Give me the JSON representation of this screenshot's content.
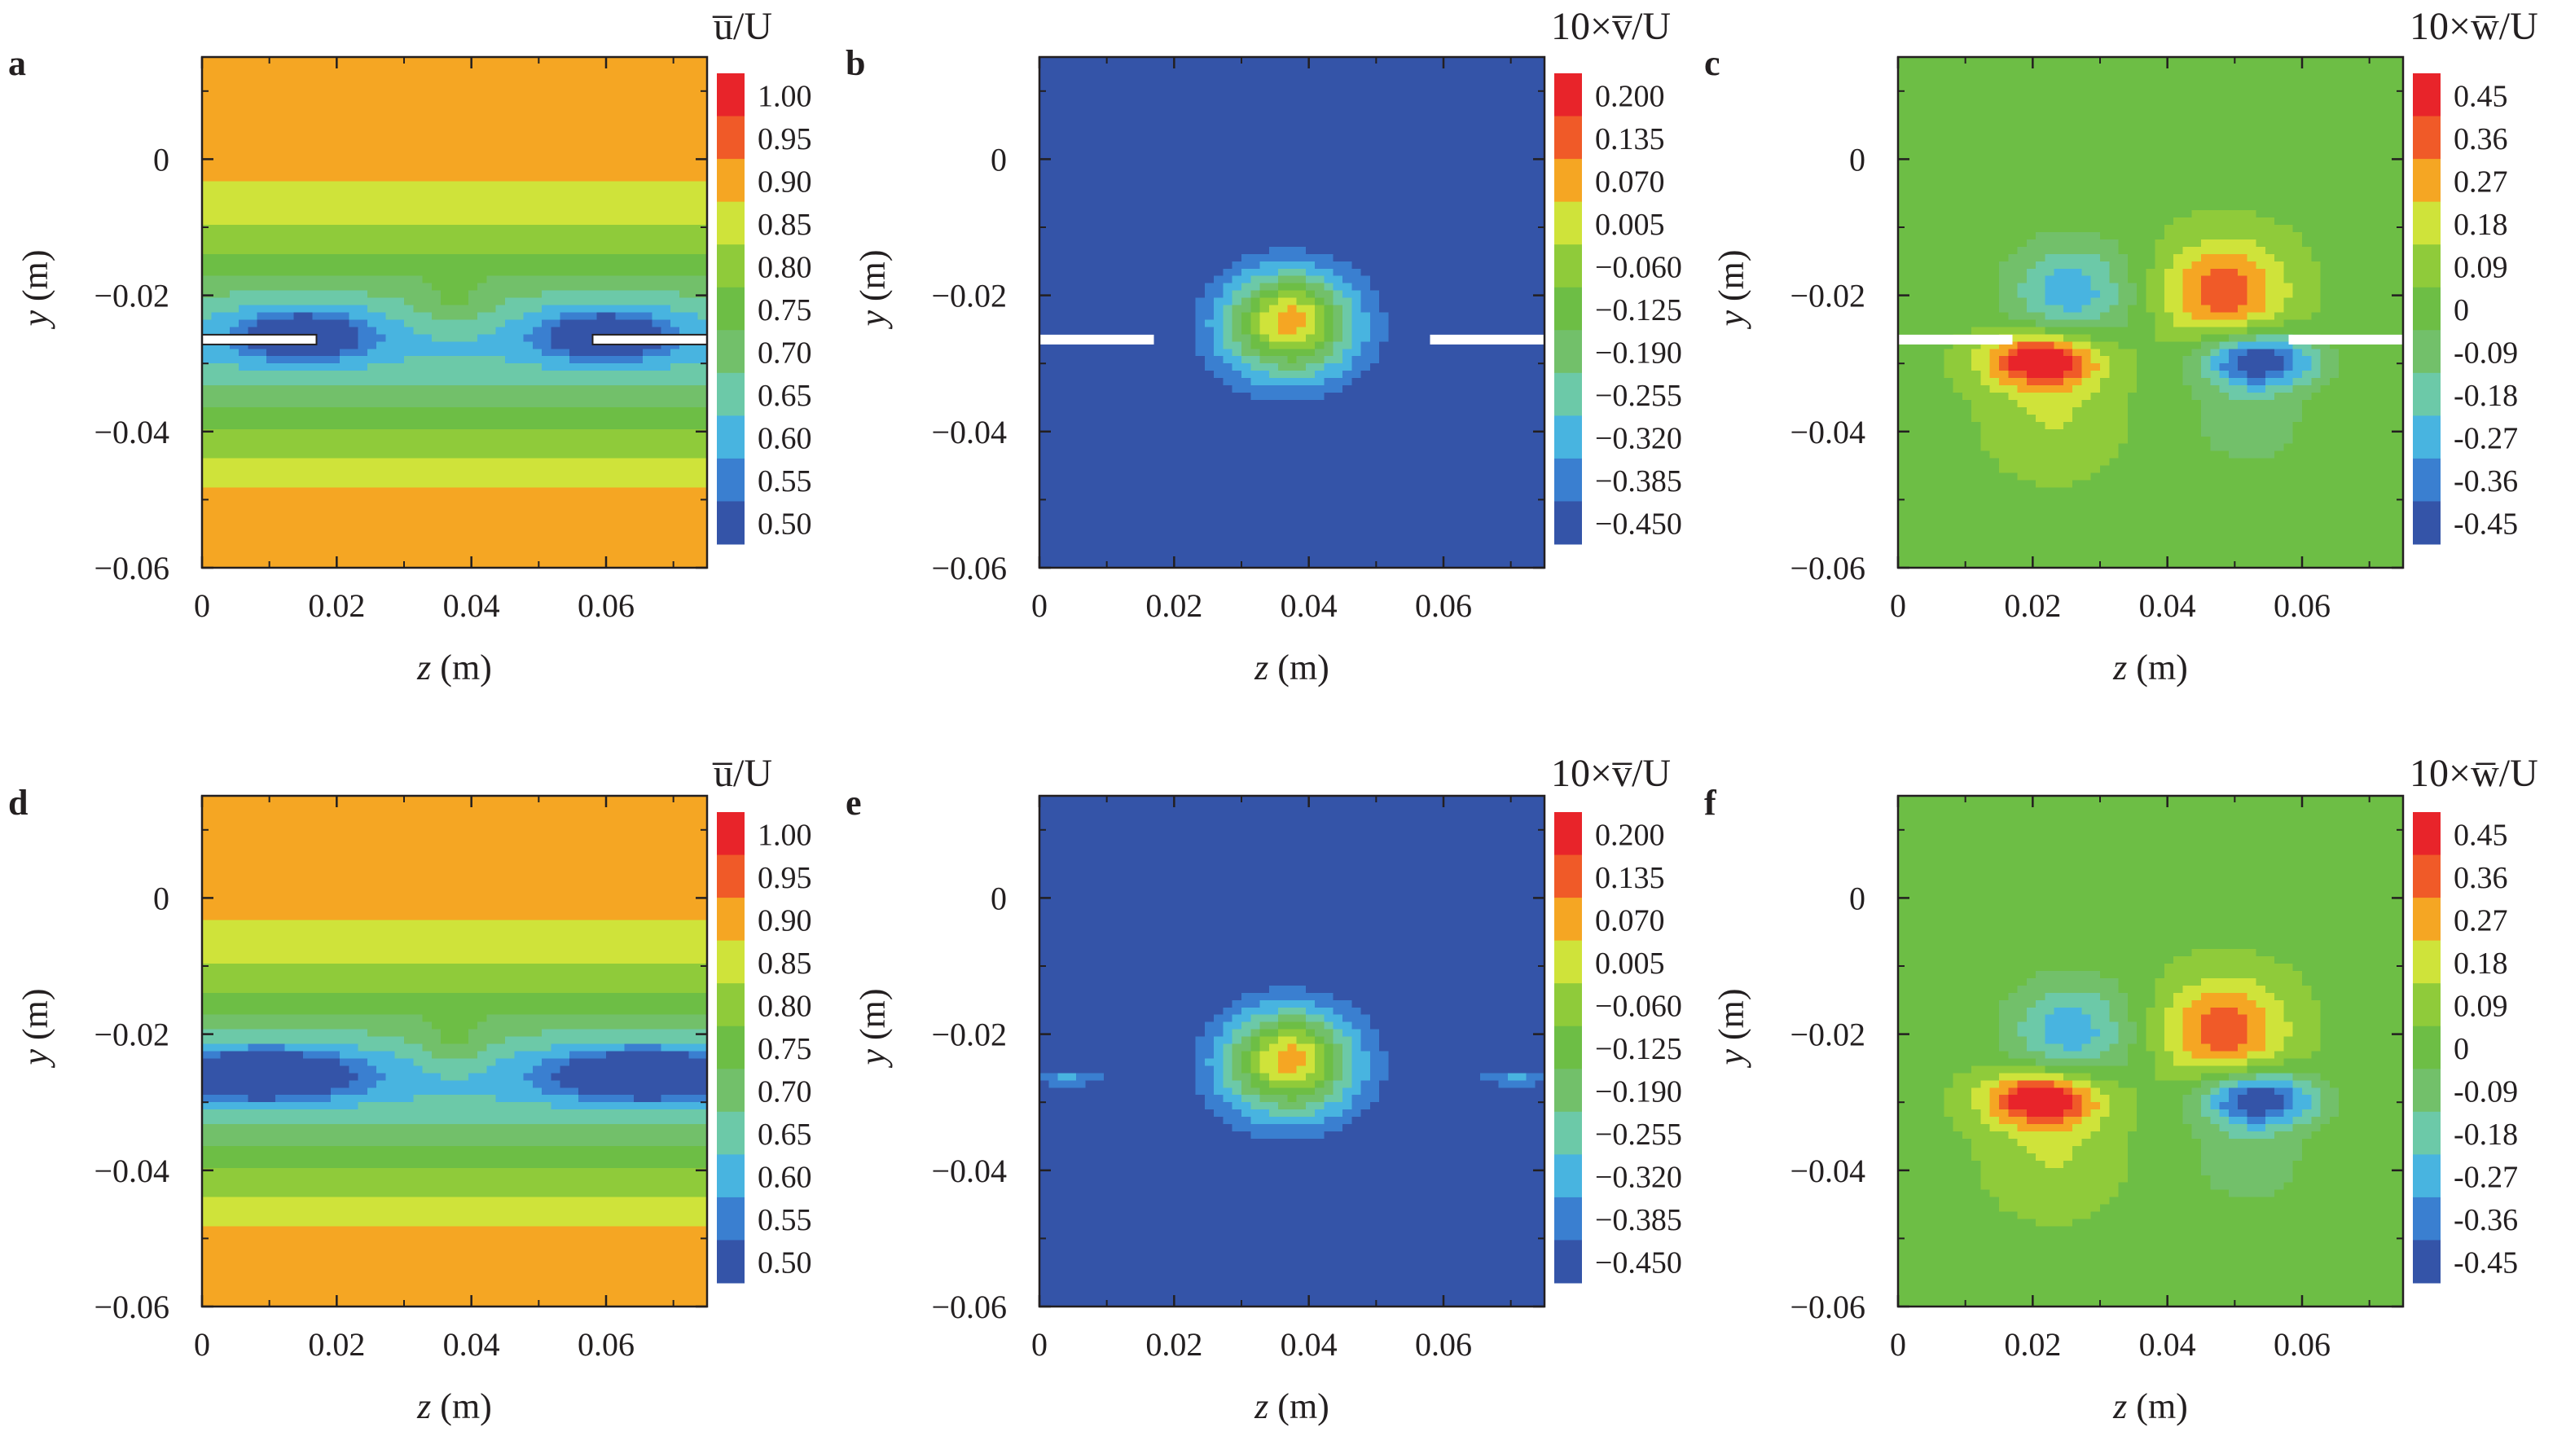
{
  "figure": {
    "panels": [
      {
        "letter": "a",
        "field": "u",
        "xlabel": "z (m)",
        "ylabel": "y (m)",
        "xticks": [
          "0",
          "0.02",
          "0.04",
          "0.06"
        ],
        "yticks": [
          "0",
          "−0.02",
          "−0.04",
          "−0.06"
        ],
        "colorbar_title": "u̅/U",
        "colorbar_levels": [
          "1.00",
          "0.95",
          "0.90",
          "0.85",
          "0.80",
          "0.75",
          "0.70",
          "0.65",
          "0.60",
          "0.55",
          "0.50"
        ],
        "plate": true
      },
      {
        "letter": "b",
        "field": "v",
        "xlabel": "z (m)",
        "ylabel": "y (m)",
        "xticks": [
          "0",
          "0.02",
          "0.04",
          "0.06"
        ],
        "yticks": [
          "0",
          "−0.02",
          "−0.04",
          "−0.06"
        ],
        "colorbar_title": "10×v̅/U",
        "colorbar_levels": [
          "0.200",
          "0.135",
          "0.070",
          "0.005",
          "−0.060",
          "−0.125",
          "−0.190",
          "−0.255",
          "−0.320",
          "−0.385",
          "−0.450"
        ],
        "plate": true
      },
      {
        "letter": "c",
        "field": "w",
        "xlabel": "z (m)",
        "ylabel": "y (m)",
        "xticks": [
          "0",
          "0.02",
          "0.04",
          "0.06"
        ],
        "yticks": [
          "0",
          "−0.02",
          "−0.04",
          "−0.06"
        ],
        "colorbar_title": "10×w̅/U",
        "colorbar_levels": [
          "0.45",
          "0.36",
          "0.27",
          "0.18",
          "0.09",
          "0",
          "-0.09",
          "-0.18",
          "-0.27",
          "-0.36",
          "-0.45"
        ],
        "plate": true
      },
      {
        "letter": "d",
        "field": "u",
        "xlabel": "z (m)",
        "ylabel": "y (m)",
        "xticks": [
          "0",
          "0.02",
          "0.04",
          "0.06"
        ],
        "yticks": [
          "0",
          "−0.02",
          "−0.04",
          "−0.06"
        ],
        "colorbar_title": "u̅/U",
        "colorbar_levels": [
          "1.00",
          "0.95",
          "0.90",
          "0.85",
          "0.80",
          "0.75",
          "0.70",
          "0.65",
          "0.60",
          "0.55",
          "0.50"
        ],
        "plate": false
      },
      {
        "letter": "e",
        "field": "v",
        "xlabel": "z (m)",
        "ylabel": "y (m)",
        "xticks": [
          "0",
          "0.02",
          "0.04",
          "0.06"
        ],
        "yticks": [
          "0",
          "−0.02",
          "−0.04",
          "−0.06"
        ],
        "colorbar_title": "10×v̅/U",
        "colorbar_levels": [
          "0.200",
          "0.135",
          "0.070",
          "0.005",
          "−0.060",
          "−0.125",
          "−0.190",
          "−0.255",
          "−0.320",
          "−0.385",
          "−0.450"
        ],
        "plate": false
      },
      {
        "letter": "f",
        "field": "w",
        "xlabel": "z (m)",
        "ylabel": "y (m)",
        "xticks": [
          "0",
          "0.02",
          "0.04",
          "0.06"
        ],
        "yticks": [
          "0",
          "−0.02",
          "−0.04",
          "−0.06"
        ],
        "colorbar_title": "10×w̅/U",
        "colorbar_levels": [
          "0.45",
          "0.36",
          "0.27",
          "0.18",
          "0.09",
          "0",
          "-0.09",
          "-0.18",
          "-0.27",
          "-0.36",
          "-0.45"
        ],
        "plate": false
      }
    ],
    "colormap": [
      "#e8242a",
      "#f05a28",
      "#f5a623",
      "#cfe33a",
      "#8fcb3a",
      "#6dbe45",
      "#72c06a",
      "#6cc9a8",
      "#48b4e0",
      "#3a7fd0",
      "#3454a8"
    ]
  },
  "chart_data": [
    {
      "type": "heatmap",
      "panel": "a",
      "quantity": "u̅/U",
      "xlabel": "z (m)",
      "ylabel": "y (m)",
      "xlim": [
        0,
        0.075
      ],
      "ylim": [
        -0.06,
        0.015
      ],
      "levels": [
        1.0,
        0.95,
        0.9,
        0.85,
        0.8,
        0.75,
        0.7,
        0.65,
        0.6,
        0.55,
        0.5
      ],
      "plates_z": [
        [
          0,
          0.017
        ],
        [
          0.058,
          0.075
        ]
      ],
      "plate_y": -0.0265
    },
    {
      "type": "heatmap",
      "panel": "b",
      "quantity": "10×v̅/U",
      "xlabel": "z (m)",
      "ylabel": "y (m)",
      "xlim": [
        0,
        0.075
      ],
      "ylim": [
        -0.06,
        0.015
      ],
      "levels": [
        0.2,
        0.135,
        0.07,
        0.005,
        -0.06,
        -0.125,
        -0.19,
        -0.255,
        -0.32,
        -0.385,
        -0.45
      ],
      "plates_z": [
        [
          0,
          0.017
        ],
        [
          0.058,
          0.075
        ]
      ],
      "plate_y": -0.0265
    },
    {
      "type": "heatmap",
      "panel": "c",
      "quantity": "10×w̅/U",
      "xlabel": "z (m)",
      "ylabel": "y (m)",
      "xlim": [
        0,
        0.075
      ],
      "ylim": [
        -0.06,
        0.015
      ],
      "levels": [
        0.45,
        0.36,
        0.27,
        0.18,
        0.09,
        0,
        -0.09,
        -0.18,
        -0.27,
        -0.36,
        -0.45
      ],
      "plates_z": [
        [
          0,
          0.017
        ],
        [
          0.058,
          0.075
        ]
      ],
      "plate_y": -0.0265
    },
    {
      "type": "heatmap",
      "panel": "d",
      "quantity": "u̅/U",
      "xlabel": "z (m)",
      "ylabel": "y (m)",
      "xlim": [
        0,
        0.075
      ],
      "ylim": [
        -0.06,
        0.015
      ],
      "levels": [
        1.0,
        0.95,
        0.9,
        0.85,
        0.8,
        0.75,
        0.7,
        0.65,
        0.6,
        0.55,
        0.5
      ]
    },
    {
      "type": "heatmap",
      "panel": "e",
      "quantity": "10×v̅/U",
      "xlabel": "z (m)",
      "ylabel": "y (m)",
      "xlim": [
        0,
        0.075
      ],
      "ylim": [
        -0.06,
        0.015
      ],
      "levels": [
        0.2,
        0.135,
        0.07,
        0.005,
        -0.06,
        -0.125,
        -0.19,
        -0.255,
        -0.32,
        -0.385,
        -0.45
      ]
    },
    {
      "type": "heatmap",
      "panel": "f",
      "quantity": "10×w̅/U",
      "xlabel": "z (m)",
      "ylabel": "y (m)",
      "xlim": [
        0,
        0.075
      ],
      "ylim": [
        -0.06,
        0.015
      ],
      "levels": [
        0.45,
        0.36,
        0.27,
        0.18,
        0.09,
        0,
        -0.09,
        -0.18,
        -0.27,
        -0.36,
        -0.45
      ]
    }
  ]
}
